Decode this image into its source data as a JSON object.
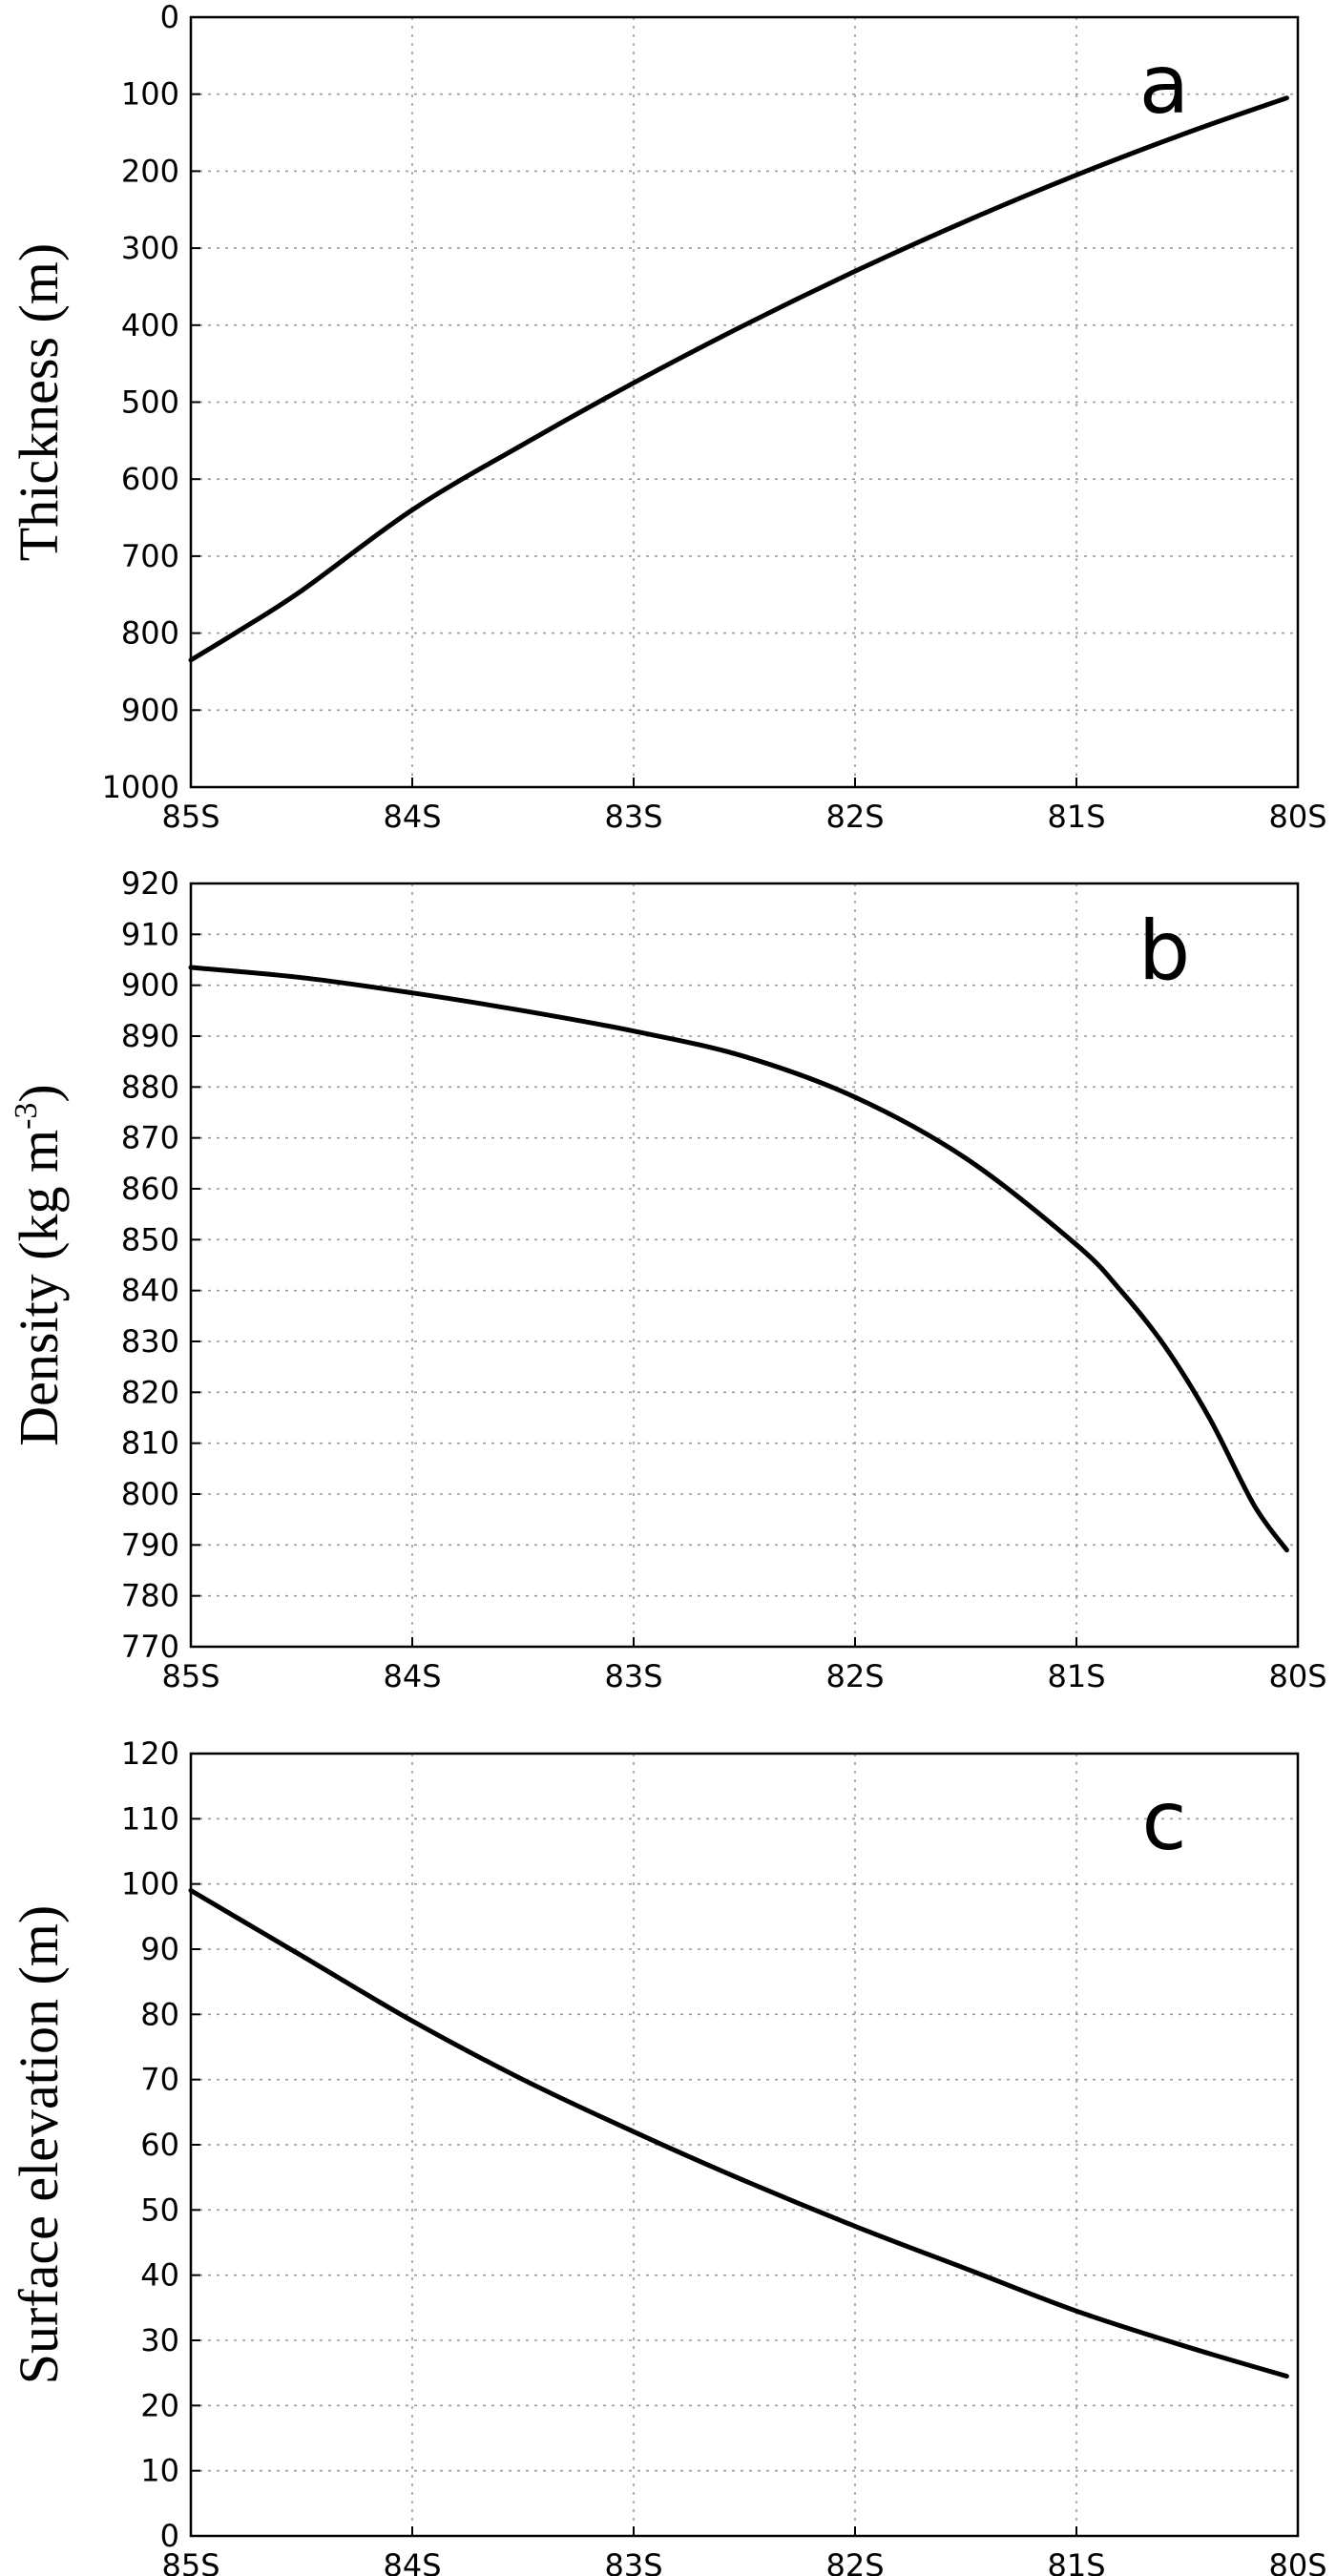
{
  "chart_data": [
    {
      "type": "line",
      "panel_label": "a",
      "ylabel": "Thickness (m)",
      "ylabel_superscript": "",
      "ylabel_suffix": "",
      "xlabel": "",
      "title": "",
      "y_inverted": true,
      "grid": true,
      "ylim": [
        0,
        1000
      ],
      "yticks": [
        0,
        100,
        200,
        300,
        400,
        500,
        600,
        700,
        800,
        900,
        1000
      ],
      "xlim": [
        85,
        80
      ],
      "xticks": [
        85,
        84,
        83,
        82,
        81,
        80
      ],
      "xticklabels": [
        "85S",
        "84S",
        "83S",
        "82S",
        "81S",
        "80S"
      ],
      "series": [
        {
          "x": [
            85.0,
            84.8,
            84.5,
            84.0,
            83.5,
            83.0,
            82.5,
            82.0,
            81.5,
            81.0,
            80.5,
            80.05
          ],
          "y": [
            835,
            800,
            745,
            640,
            555,
            475,
            400,
            330,
            265,
            205,
            150,
            105
          ]
        }
      ]
    },
    {
      "type": "line",
      "panel_label": "b",
      "ylabel": "Density (kg m",
      "ylabel_superscript": "-3",
      "ylabel_suffix": ")",
      "xlabel": "",
      "title": "",
      "y_inverted": false,
      "grid": true,
      "ylim": [
        770,
        920
      ],
      "yticks": [
        770,
        780,
        790,
        800,
        810,
        820,
        830,
        840,
        850,
        860,
        870,
        880,
        890,
        900,
        910,
        920
      ],
      "xlim": [
        85,
        80
      ],
      "xticks": [
        85,
        84,
        83,
        82,
        81,
        80
      ],
      "xticklabels": [
        "85S",
        "84S",
        "83S",
        "82S",
        "81S",
        "80S"
      ],
      "series": [
        {
          "x": [
            85.0,
            84.5,
            84.0,
            83.5,
            83.0,
            82.5,
            82.0,
            81.5,
            81.0,
            80.8,
            80.6,
            80.4,
            80.2,
            80.05
          ],
          "y": [
            903.5,
            901.5,
            898.5,
            895,
            891,
            886,
            878,
            866,
            849,
            840,
            829,
            815,
            798,
            789
          ]
        }
      ]
    },
    {
      "type": "line",
      "panel_label": "c",
      "ylabel": "Surface elevation (m)",
      "ylabel_superscript": "",
      "ylabel_suffix": "",
      "xlabel": "",
      "title": "",
      "y_inverted": false,
      "grid": true,
      "ylim": [
        0,
        120
      ],
      "yticks": [
        0,
        10,
        20,
        30,
        40,
        50,
        60,
        70,
        80,
        90,
        100,
        110,
        120
      ],
      "xlim": [
        85,
        80
      ],
      "xticks": [
        85,
        84,
        83,
        82,
        81,
        80
      ],
      "xticklabels": [
        "85S",
        "84S",
        "83S",
        "82S",
        "81S",
        "80S"
      ],
      "series": [
        {
          "x": [
            85.0,
            84.5,
            84.0,
            83.5,
            83.0,
            82.5,
            82.0,
            81.5,
            81.0,
            80.5,
            80.05
          ],
          "y": [
            99,
            89,
            79,
            70,
            62,
            54.5,
            47.5,
            41,
            34.5,
            29,
            24.5
          ]
        }
      ]
    }
  ]
}
